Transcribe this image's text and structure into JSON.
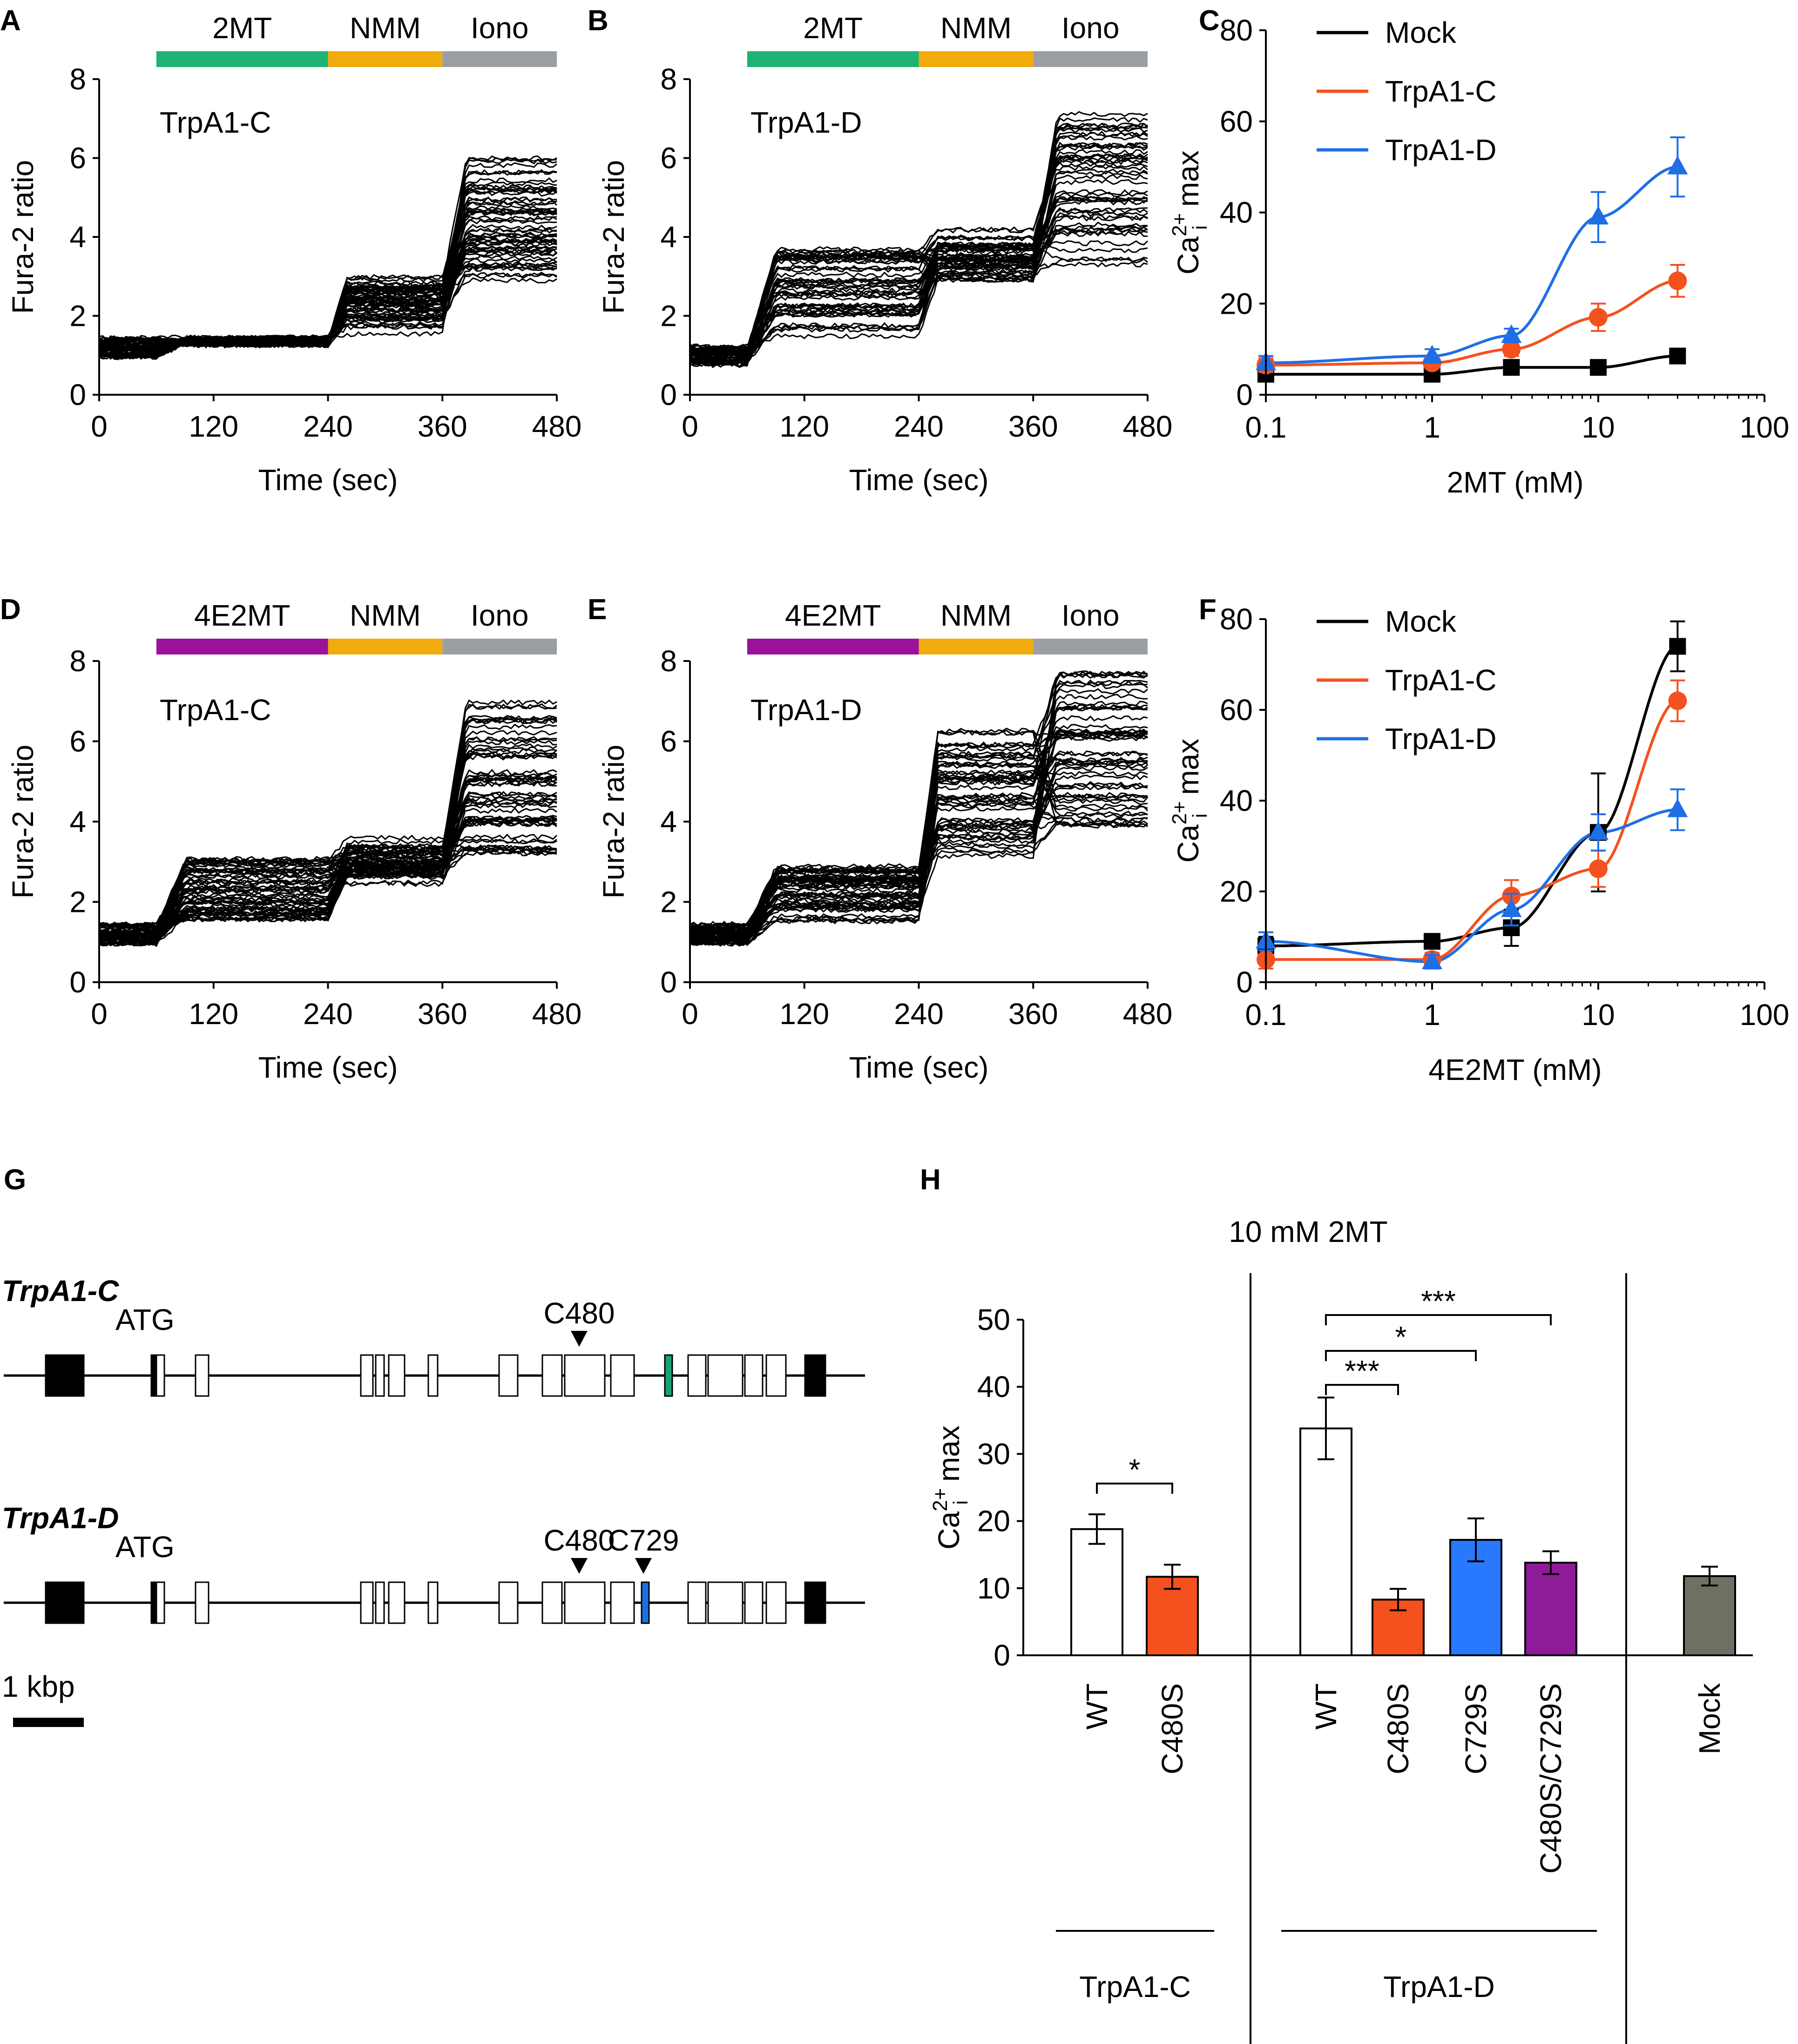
{
  "figure": {
    "panel_labels": [
      "A",
      "B",
      "C",
      "D",
      "E",
      "F",
      "G",
      "H"
    ],
    "colors": {
      "mock": "#000000",
      "trpa1_c": "#f4511e",
      "trpa1_d": "#1e6fe6",
      "bar_2mt": "#1db374",
      "bar_4e2mt": "#9b119b",
      "bar_nmm": "#f2ab0c",
      "bar_iono": "#9a9fa3",
      "c729s_bar": "#2979ff",
      "c480s_c729s_bar": "#8e1b98",
      "mock_bar": "#6d7163",
      "green_exon": "#1ba271",
      "blue_exon": "#1e6fe6"
    },
    "icons": {
      "exon_marker": "arrow-down-triangle-icon",
      "scale_bar": "scale-bar-icon"
    }
  },
  "chart_data": [
    {
      "id": "A",
      "type": "line",
      "title": "TrpA1-C",
      "stimulus_bar": [
        {
          "label": "2MT",
          "start": 60,
          "end": 240
        },
        {
          "label": "NMM",
          "start": 240,
          "end": 360
        },
        {
          "label": "Iono",
          "start": 360,
          "end": 480
        }
      ],
      "xlabel": "Time (sec)",
      "ylabel": "Fura-2 ratio",
      "xlim": [
        0,
        480
      ],
      "ylim": [
        0,
        8
      ],
      "xticks": [
        "0",
        "120",
        "240",
        "360",
        "480"
      ],
      "yticks": [
        "0",
        "2",
        "4",
        "6",
        "8"
      ],
      "trace_count": 60,
      "trace_baseline": [
        1.2,
        1.35,
        2.3,
        3.8
      ],
      "trace_range_end": [
        2.9,
        6.0
      ]
    },
    {
      "id": "B",
      "type": "line",
      "title": "TrpA1-D",
      "stimulus_bar": [
        {
          "label": "2MT",
          "start": 60,
          "end": 240
        },
        {
          "label": "NMM",
          "start": 240,
          "end": 360
        },
        {
          "label": "Iono",
          "start": 360,
          "end": 480
        }
      ],
      "xlabel": "Time (sec)",
      "ylabel": "Fura-2 ratio",
      "xlim": [
        0,
        480
      ],
      "ylim": [
        0,
        8
      ],
      "xticks": [
        "0",
        "120",
        "240",
        "360",
        "480"
      ],
      "yticks": [
        "0",
        "2",
        "4",
        "6",
        "8"
      ],
      "trace_count": 50,
      "trace_baseline": [
        1.0,
        2.6,
        3.5,
        5.0
      ],
      "trace_range_end": [
        3.3,
        7.2
      ]
    },
    {
      "id": "C",
      "type": "line",
      "xlabel": "2MT (mM)",
      "ylabel": "Ca2+i max",
      "xscale": "log",
      "xlim": [
        0.1,
        100
      ],
      "ylim": [
        0,
        80
      ],
      "xticks": [
        "0.1",
        "1",
        "10",
        "100"
      ],
      "yticks": [
        "0",
        "20",
        "40",
        "60",
        "80"
      ],
      "legend": [
        "Mock",
        "TrpA1-C",
        "TrpA1-D"
      ],
      "series": [
        {
          "name": "Mock",
          "marker": "square",
          "x": [
            0.1,
            1,
            3,
            10,
            30
          ],
          "y": [
            4.5,
            4.5,
            6,
            6,
            8.5
          ],
          "err": [
            1,
            1,
            1,
            1,
            1.5
          ]
        },
        {
          "name": "TrpA1-C",
          "marker": "circle",
          "x": [
            0.1,
            1,
            3,
            10,
            30
          ],
          "y": [
            6.5,
            7,
            10,
            17,
            25
          ],
          "err": [
            1.5,
            1.2,
            1.5,
            3,
            3.5
          ]
        },
        {
          "name": "TrpA1-D",
          "marker": "triangle",
          "x": [
            0.1,
            1,
            3,
            10,
            30
          ],
          "y": [
            7,
            8.5,
            13,
            39,
            50
          ],
          "err": [
            1.5,
            1.5,
            1.5,
            5.5,
            6.5
          ]
        }
      ]
    },
    {
      "id": "D",
      "type": "line",
      "title": "TrpA1-C",
      "stimulus_bar": [
        {
          "label": "4E2MT",
          "start": 60,
          "end": 240
        },
        {
          "label": "NMM",
          "start": 240,
          "end": 360
        },
        {
          "label": "Iono",
          "start": 360,
          "end": 480
        }
      ],
      "xlabel": "Time (sec)",
      "ylabel": "Fura-2 ratio",
      "xlim": [
        0,
        480
      ],
      "ylim": [
        0,
        8
      ],
      "xticks": [
        "0",
        "120",
        "240",
        "360",
        "480"
      ],
      "yticks": [
        "0",
        "2",
        "4",
        "6",
        "8"
      ],
      "trace_count": 60,
      "trace_baseline": [
        1.2,
        2.3,
        3.0,
        4.5
      ],
      "trace_range_end": [
        3.2,
        7.0
      ]
    },
    {
      "id": "E",
      "type": "line",
      "title": "TrpA1-D",
      "stimulus_bar": [
        {
          "label": "4E2MT",
          "start": 60,
          "end": 240
        },
        {
          "label": "NMM",
          "start": 240,
          "end": 360
        },
        {
          "label": "Iono",
          "start": 360,
          "end": 480
        }
      ],
      "xlabel": "Time (sec)",
      "ylabel": "Fura-2 ratio",
      "xlim": [
        0,
        480
      ],
      "ylim": [
        0,
        8
      ],
      "xticks": [
        "0",
        "120",
        "240",
        "360",
        "480"
      ],
      "yticks": [
        "0",
        "2",
        "4",
        "6",
        "8"
      ],
      "trace_count": 55,
      "trace_baseline": [
        1.2,
        2.2,
        4.8,
        4.9
      ],
      "trace_range_end": [
        3.9,
        7.7
      ]
    },
    {
      "id": "F",
      "type": "line",
      "xlabel": "4E2MT (mM)",
      "ylabel": "Ca2+i max",
      "xscale": "log",
      "xlim": [
        0.1,
        100
      ],
      "ylim": [
        0,
        80
      ],
      "xticks": [
        "0.1",
        "1",
        "10",
        "100"
      ],
      "yticks": [
        "0",
        "20",
        "40",
        "60",
        "80"
      ],
      "legend": [
        "Mock",
        "TrpA1-C",
        "TrpA1-D"
      ],
      "series": [
        {
          "name": "Mock",
          "marker": "square",
          "x": [
            0.1,
            1,
            3,
            10,
            30
          ],
          "y": [
            8,
            9,
            12,
            33,
            74
          ],
          "err": [
            2,
            1,
            4,
            13,
            5.5
          ]
        },
        {
          "name": "TrpA1-C",
          "marker": "circle",
          "x": [
            0.1,
            1,
            3,
            10,
            30
          ],
          "y": [
            5,
            5,
            19,
            25,
            62
          ],
          "err": [
            2,
            1.5,
            3.5,
            4,
            4.5
          ]
        },
        {
          "name": "TrpA1-D",
          "marker": "triangle",
          "x": [
            0.1,
            1,
            3,
            10,
            30
          ],
          "y": [
            9,
            4.5,
            16,
            33,
            38
          ],
          "err": [
            2,
            1.5,
            3.5,
            4,
            4.5
          ]
        }
      ]
    },
    {
      "id": "G",
      "type": "diagram",
      "scale_label": "1 kbp",
      "genes": [
        {
          "name": "TrpA1-C",
          "atg_label": "ATG",
          "sites": [
            "C480"
          ]
        },
        {
          "name": "TrpA1-D",
          "atg_label": "ATG",
          "sites": [
            "C480",
            "C729"
          ]
        }
      ]
    },
    {
      "id": "H",
      "type": "bar",
      "title": "10 mM 2MT",
      "ylabel": "Ca2+i max",
      "ylim": [
        0,
        50
      ],
      "yticks": [
        "0",
        "10",
        "20",
        "30",
        "40",
        "50"
      ],
      "categories": [
        "WT",
        "C480S",
        "WT",
        "C480S",
        "C729S",
        "C480S/C729S",
        "Mock"
      ],
      "values": [
        18.8,
        11.7,
        33.8,
        8.3,
        17.2,
        13.8,
        11.8
      ],
      "errors": [
        2.2,
        1.8,
        4.6,
        1.6,
        3.2,
        1.7,
        1.4
      ],
      "groups": [
        {
          "label": "TrpA1-C",
          "bars": [
            0,
            1
          ]
        },
        {
          "label": "TrpA1-D",
          "bars": [
            2,
            3,
            4,
            5
          ]
        },
        {
          "label": "",
          "bars": [
            6
          ]
        }
      ],
      "significance": [
        {
          "from": 0,
          "to": 1,
          "label": "*"
        },
        {
          "from": 2,
          "to": 3,
          "label": "***"
        },
        {
          "from": 2,
          "to": 4,
          "label": "*"
        },
        {
          "from": 2,
          "to": 5,
          "label": "***"
        }
      ]
    }
  ]
}
